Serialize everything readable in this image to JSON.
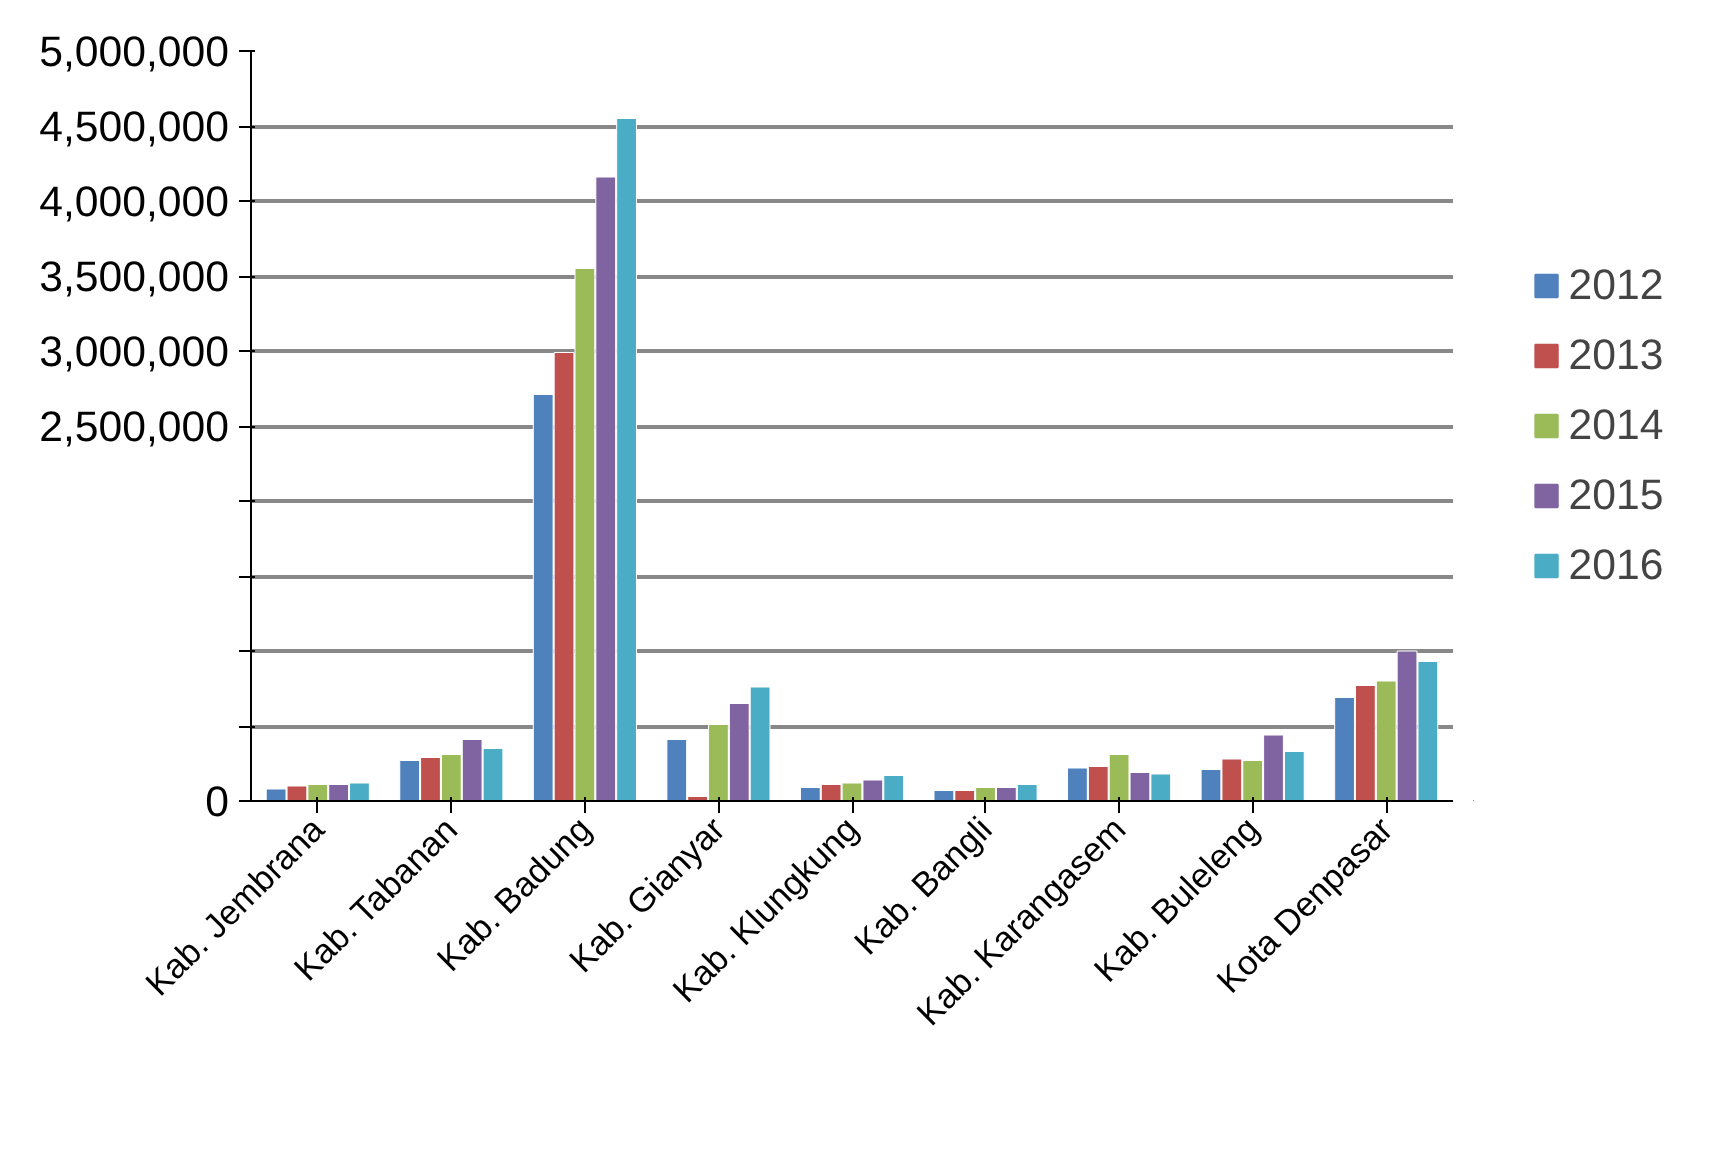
{
  "chart_data": {
    "type": "bar",
    "categories": [
      "Kab. Jembrana",
      "Kab. Tabanan",
      "Kab. Badung",
      "Kab. Gianyar",
      "Kab. Klungkung",
      "Kab. Bangli",
      "Kab. Karangasem",
      "Kab. Buleleng",
      "Kota Denpasar"
    ],
    "series": [
      {
        "name": "2012",
        "color": "#4f81bd",
        "values": [
          80000,
          270000,
          2710000,
          410000,
          90000,
          70000,
          220000,
          210000,
          690000
        ]
      },
      {
        "name": "2013",
        "color": "#c0504d",
        "values": [
          100000,
          290000,
          2990000,
          30000,
          110000,
          70000,
          230000,
          280000,
          770000
        ]
      },
      {
        "name": "2014",
        "color": "#9bbb59",
        "values": [
          110000,
          310000,
          3550000,
          510000,
          120000,
          90000,
          310000,
          270000,
          800000
        ]
      },
      {
        "name": "2015",
        "color": "#8064a2",
        "values": [
          110000,
          410000,
          4160000,
          650000,
          140000,
          90000,
          190000,
          440000,
          1000000
        ]
      },
      {
        "name": "2016",
        "color": "#4bacc6",
        "values": [
          120000,
          350000,
          4550000,
          760000,
          170000,
          110000,
          180000,
          330000,
          930000
        ]
      }
    ],
    "ylim": [
      0,
      5000000
    ],
    "yticks": [
      {
        "value": 0,
        "label": "0"
      },
      {
        "value": 500000,
        "label": null
      },
      {
        "value": 1000000,
        "label": null
      },
      {
        "value": 1500000,
        "label": null
      },
      {
        "value": 2000000,
        "label": null
      },
      {
        "value": 2500000,
        "label": "2,500,000"
      },
      {
        "value": 3000000,
        "label": "3,000,000"
      },
      {
        "value": 3500000,
        "label": "3,500,000"
      },
      {
        "value": 4000000,
        "label": "4,000,000"
      },
      {
        "value": 4500000,
        "label": "4,500,000"
      },
      {
        "value": 5000000,
        "label": "5,000,000"
      }
    ],
    "grid": "y",
    "legend": "right"
  }
}
